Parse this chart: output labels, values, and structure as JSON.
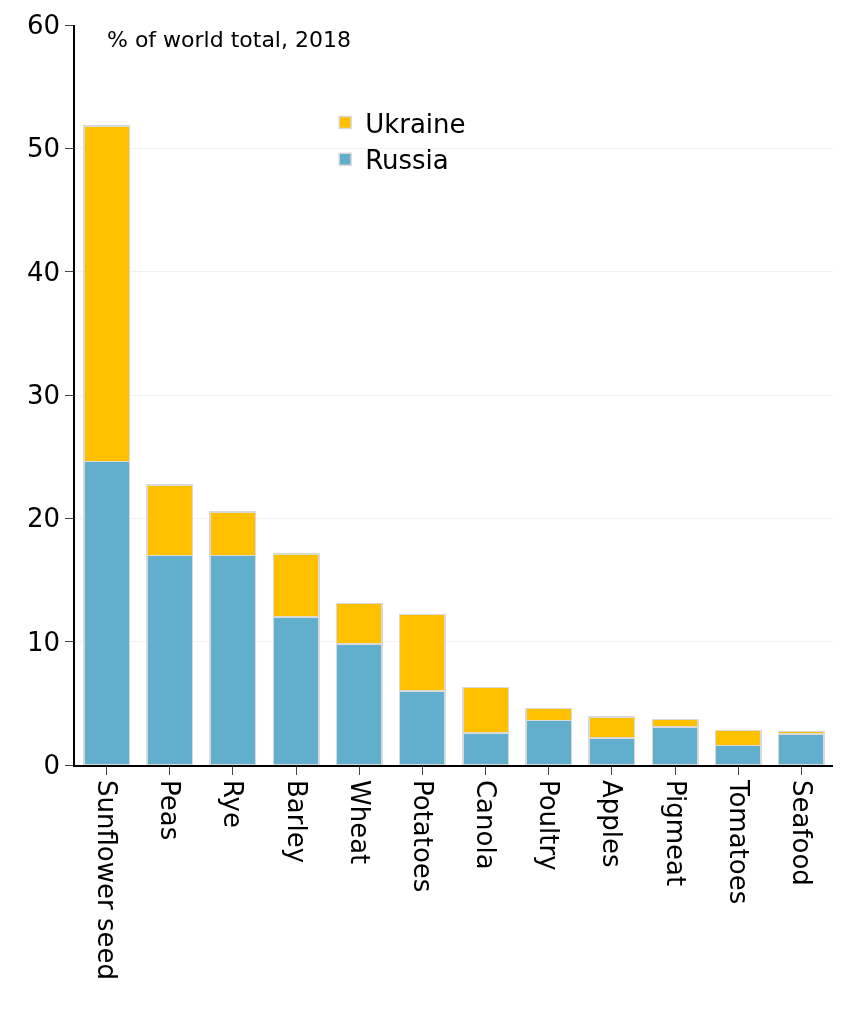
{
  "chart_data": {
    "type": "bar",
    "stacked": true,
    "ylabel": "% of world total, 2018",
    "categories": [
      "Sunflower seed",
      "Peas",
      "Rye",
      "Barley",
      "Wheat",
      "Potatoes",
      "Canola",
      "Poultry",
      "Apples",
      "Pigmeat",
      "Tomatoes",
      "Seafood"
    ],
    "series": [
      {
        "name": "Russia",
        "color": "#62aecd",
        "values": [
          24.6,
          17.0,
          17.0,
          12.0,
          9.8,
          6.0,
          2.6,
          3.6,
          2.2,
          3.1,
          1.6,
          2.5
        ]
      },
      {
        "name": "Ukraine",
        "color": "#ffc000",
        "values": [
          27.2,
          5.7,
          3.5,
          5.1,
          3.3,
          6.2,
          3.7,
          1.0,
          1.7,
          0.6,
          1.2,
          0.2
        ]
      }
    ],
    "ylim": [
      0,
      60
    ],
    "yticks": [
      0,
      10,
      20,
      30,
      40,
      50,
      60
    ],
    "grid": "y",
    "legend": "top"
  }
}
